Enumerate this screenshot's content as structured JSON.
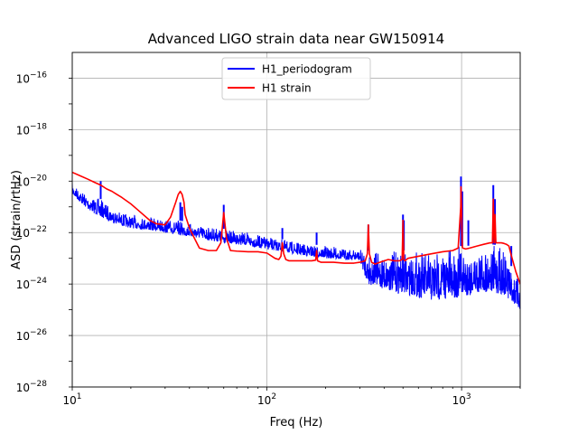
{
  "chart_data": {
    "type": "line",
    "title": "Advanced LIGO strain data near GW150914",
    "xlabel": "Freq (Hz)",
    "ylabel": "ASD (strain/rtHz)",
    "xscale": "log",
    "yscale": "log",
    "xlim": [
      10,
      2000
    ],
    "ylim": [
      1e-28,
      1e-15
    ],
    "grid": true,
    "legend_position": "top-center",
    "x_ticks": [
      {
        "value": 10,
        "base": "10",
        "exp": "1"
      },
      {
        "value": 100,
        "base": "10",
        "exp": "2"
      },
      {
        "value": 1000,
        "base": "10",
        "exp": "3"
      }
    ],
    "x_tick_end": 2000,
    "y_ticks": [
      {
        "value": 1e-16,
        "base": "10",
        "exp": "−16"
      },
      {
        "value": 1e-18,
        "base": "10",
        "exp": "−18"
      },
      {
        "value": 1e-20,
        "base": "10",
        "exp": "−20"
      },
      {
        "value": 1e-22,
        "base": "10",
        "exp": "−22"
      },
      {
        "value": 1e-24,
        "base": "10",
        "exp": "−24"
      },
      {
        "value": 1e-26,
        "base": "10",
        "exp": "−26"
      },
      {
        "value": 1e-28,
        "base": "10",
        "exp": "−28"
      }
    ],
    "series": [
      {
        "name": "H1_periodogram",
        "color": "#0000ff",
        "upper": {
          "x": [
            10,
            12,
            14,
            16,
            18,
            20,
            25,
            30,
            35,
            40,
            50,
            60,
            70,
            80,
            100,
            120,
            150,
            200,
            250,
            300,
            330,
            400,
            500,
            600,
            700,
            800,
            1000,
            1200,
            1400,
            1600,
            1700,
            1800,
            2000
          ],
          "y": [
            8e-21,
            3e-21,
            2e-21,
            1e-21,
            6e-22,
            5e-22,
            4e-22,
            3.5e-22,
            3e-22,
            2.5e-22,
            1.8e-22,
            1.4e-22,
            1.2e-22,
            1e-22,
            7e-23,
            5.5e-23,
            4e-23,
            3e-23,
            2.5e-23,
            2.2e-23,
            2e-23,
            2e-23,
            2e-23,
            2.2e-23,
            2.5e-23,
            2.8e-23,
            3e-23,
            3.2e-23,
            3.5e-23,
            3.2e-23,
            2e-23,
            5e-24,
            1e-24
          ]
        },
        "lower": {
          "x": [
            10,
            12,
            14,
            16,
            18,
            20,
            25,
            30,
            35,
            40,
            50,
            60,
            70,
            80,
            100,
            120,
            150,
            200,
            250,
            300,
            330,
            400,
            500,
            600,
            700,
            800,
            1000,
            1200,
            1400,
            1600,
            1700,
            1800,
            2000
          ],
          "y": [
            3e-21,
            8e-22,
            4e-22,
            2.5e-22,
            1.8e-22,
            1.5e-22,
            1.2e-22,
            1e-22,
            8e-23,
            7e-23,
            5e-23,
            4e-23,
            3.5e-23,
            3e-23,
            2.2e-23,
            1.8e-23,
            1.3e-23,
            1e-23,
            9e-24,
            8e-24,
            1e-24,
            6e-25,
            4e-25,
            3e-25,
            2e-25,
            2.5e-25,
            3e-25,
            4e-25,
            5e-25,
            4e-25,
            3e-25,
            2e-25,
            1e-25
          ]
        },
        "spikes": [
          {
            "x": 14,
            "y": 1e-20
          },
          {
            "x": 35.9,
            "y": 1.5e-21
          },
          {
            "x": 36.7,
            "y": 1e-21
          },
          {
            "x": 60,
            "y": 1.2e-21
          },
          {
            "x": 120,
            "y": 1.5e-22
          },
          {
            "x": 180,
            "y": 1e-22
          },
          {
            "x": 331.9,
            "y": 2e-22
          },
          {
            "x": 500,
            "y": 5e-22
          },
          {
            "x": 505,
            "y": 3e-22
          },
          {
            "x": 993,
            "y": 1.5e-20
          },
          {
            "x": 1008,
            "y": 4e-21
          },
          {
            "x": 1083,
            "y": 3e-22
          },
          {
            "x": 1455,
            "y": 7e-21
          },
          {
            "x": 1484,
            "y": 2e-21
          },
          {
            "x": 1800,
            "y": 3e-23
          }
        ]
      },
      {
        "name": "H1 strain",
        "color": "#ff0000",
        "x": [
          10,
          11,
          12,
          13,
          14,
          15,
          16,
          17,
          18,
          20,
          22,
          25,
          27,
          30,
          32,
          34,
          35,
          35.9,
          36.7,
          37.5,
          38,
          40,
          42,
          45,
          50,
          55,
          58,
          60,
          62,
          65,
          70,
          80,
          90,
          100,
          110,
          115,
          118,
          120,
          122,
          125,
          130,
          150,
          170,
          178,
          180,
          182,
          190,
          200,
          220,
          250,
          280,
          300,
          320,
          328,
          331.9,
          336,
          345,
          360,
          380,
          400,
          420,
          450,
          480,
          495,
          500,
          505,
          512,
          530,
          600,
          700,
          800,
          900,
          960,
          990,
          993,
          1000,
          1008,
          1015,
          1050,
          1100,
          1200,
          1300,
          1400,
          1440,
          1455,
          1470,
          1484,
          1500,
          1550,
          1600,
          1650,
          1700,
          1750,
          1800,
          1900,
          2000
        ],
        "y": [
          2.2e-20,
          1.6e-20,
          1.2e-20,
          9e-21,
          7e-21,
          5e-21,
          4e-21,
          3e-21,
          2.3e-21,
          1.3e-21,
          7e-22,
          3e-22,
          2.2e-22,
          2e-22,
          4e-22,
          1.5e-21,
          3e-21,
          4e-21,
          3e-21,
          1.5e-21,
          5e-22,
          1.5e-22,
          7e-23,
          2.5e-23,
          2e-23,
          2e-23,
          4e-23,
          6e-22,
          6e-23,
          2e-23,
          1.9e-23,
          1.8e-23,
          1.8e-23,
          1.6e-23,
          1e-23,
          9e-24,
          1.2e-23,
          4e-23,
          1.5e-23,
          9e-24,
          8e-24,
          8e-24,
          8e-24,
          8.5e-24,
          2e-23,
          8e-24,
          7e-24,
          7e-24,
          7e-24,
          6.5e-24,
          6.5e-24,
          7e-24,
          8e-24,
          1.5e-23,
          2e-22,
          1.5e-23,
          7e-24,
          6e-24,
          7e-24,
          8e-24,
          9e-24,
          8e-24,
          8e-24,
          9e-24,
          3e-22,
          9e-24,
          8e-24,
          1e-23,
          1.2e-23,
          1.5e-23,
          1.8e-23,
          2e-23,
          2.5e-23,
          1e-21,
          6e-21,
          8e-22,
          3e-23,
          2.5e-23,
          2.3e-23,
          2.5e-23,
          3e-23,
          3.5e-23,
          4e-23,
          4e-23,
          2e-21,
          4e-23,
          5e-22,
          4e-23,
          4e-23,
          4e-23,
          3.8e-23,
          3.5e-23,
          3e-23,
          1.3e-23,
          3e-24,
          1e-24
        ]
      }
    ]
  }
}
